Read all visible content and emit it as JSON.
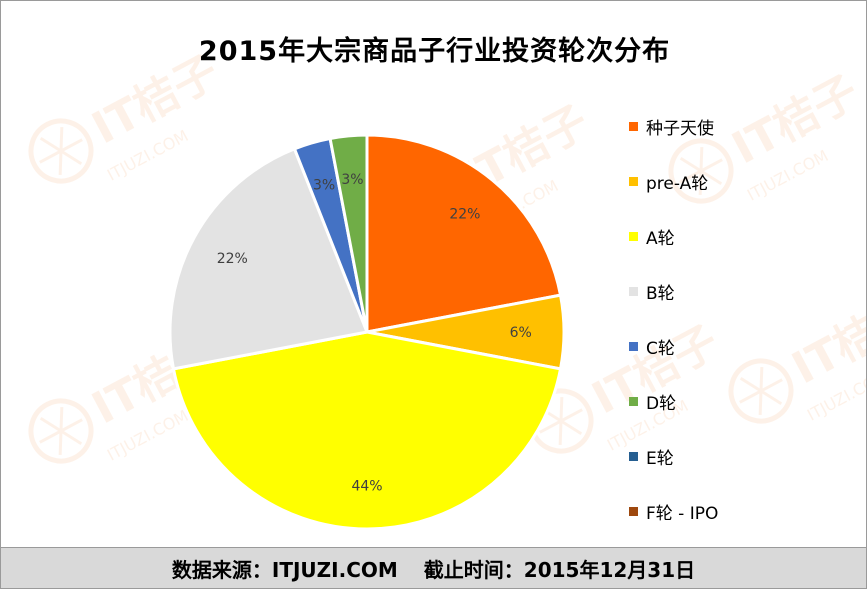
{
  "chart_data": {
    "type": "pie",
    "title": "2015年大宗商品子行业投资轮次分布",
    "start_angle": "12 o'clock, clockwise",
    "categories": [
      "种子天使",
      "pre-A轮",
      "A轮",
      "B轮",
      "C轮",
      "D轮",
      "E轮",
      "F轮 - IPO"
    ],
    "values": [
      22,
      6,
      44,
      22,
      3,
      3,
      0,
      0
    ],
    "data_labels": [
      "22%",
      "6%",
      "44%",
      "22%",
      "3%",
      "3%",
      "",
      ""
    ],
    "colors": [
      "#ff6600",
      "#ffc000",
      "#ffff00",
      "#e3e3e3",
      "#4472c4",
      "#70ad47",
      "#255e91",
      "#9e480e"
    ],
    "legend_position": "right"
  },
  "footer": {
    "source": "数据来源：ITJUZI.COM",
    "cutoff": "截止时间：2015年12月31日"
  },
  "watermark": {
    "brand": "IT桔子",
    "site": "ITJUZI.COM"
  }
}
